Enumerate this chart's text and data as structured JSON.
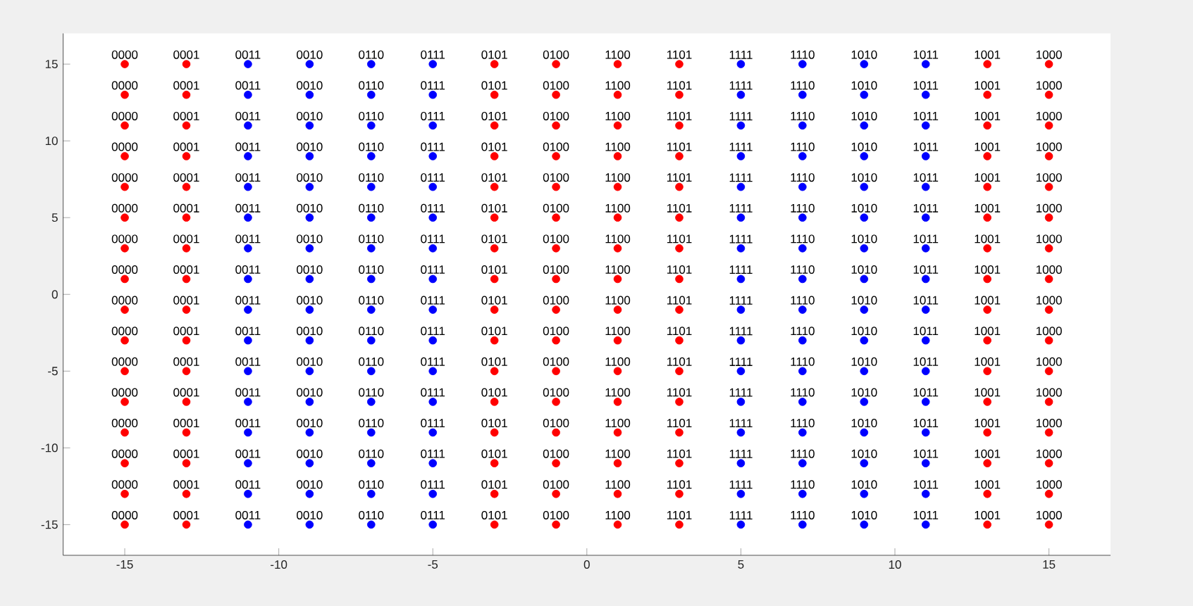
{
  "chart_data": {
    "type": "scatter",
    "marker": "circle",
    "xlim": [
      -17,
      17
    ],
    "ylim": [
      -17,
      17
    ],
    "xticks": [
      -15,
      -10,
      -5,
      0,
      5,
      10,
      15
    ],
    "yticks": [
      -15,
      -10,
      -5,
      0,
      5,
      10,
      15
    ],
    "series": [
      {
        "color": "#ff0000",
        "x": [
          -15,
          -15,
          -15,
          -15,
          -15,
          -15,
          -15,
          -15,
          -15,
          -15,
          -15,
          -15,
          -15,
          -15,
          -15,
          -15,
          -13,
          -13,
          -13,
          -13,
          -13,
          -13,
          -13,
          -13,
          -13,
          -13,
          -13,
          -13,
          -13,
          -13,
          -13,
          -13,
          -3,
          -3,
          -3,
          -3,
          -3,
          -3,
          -3,
          -3,
          -3,
          -3,
          -3,
          -3,
          -3,
          -3,
          -3,
          -3,
          -1,
          -1,
          -1,
          -1,
          -1,
          -1,
          -1,
          -1,
          -1,
          -1,
          -1,
          -1,
          -1,
          -1,
          -1,
          -1,
          1,
          1,
          1,
          1,
          1,
          1,
          1,
          1,
          1,
          1,
          1,
          1,
          1,
          1,
          1,
          1,
          3,
          3,
          3,
          3,
          3,
          3,
          3,
          3,
          3,
          3,
          3,
          3,
          3,
          3,
          3,
          3,
          13,
          13,
          13,
          13,
          13,
          13,
          13,
          13,
          13,
          13,
          13,
          13,
          13,
          13,
          13,
          13,
          15,
          15,
          15,
          15,
          15,
          15,
          15,
          15,
          15,
          15,
          15,
          15,
          15,
          15,
          15,
          15
        ],
        "values": [
          15,
          13,
          11,
          9,
          7,
          5,
          3,
          1,
          -1,
          -3,
          -5,
          -7,
          -9,
          -11,
          -13,
          -15,
          15,
          13,
          11,
          9,
          7,
          5,
          3,
          1,
          -1,
          -3,
          -5,
          -7,
          -9,
          -11,
          -13,
          -15,
          15,
          13,
          11,
          9,
          7,
          5,
          3,
          1,
          -1,
          -3,
          -5,
          -7,
          -9,
          -11,
          -13,
          -15,
          15,
          13,
          11,
          9,
          7,
          5,
          3,
          1,
          -1,
          -3,
          -5,
          -7,
          -9,
          -11,
          -13,
          -15,
          15,
          13,
          11,
          9,
          7,
          5,
          3,
          1,
          -1,
          -3,
          -5,
          -7,
          -9,
          -11,
          -13,
          -15,
          15,
          13,
          11,
          9,
          7,
          5,
          3,
          1,
          -1,
          -3,
          -5,
          -7,
          -9,
          -11,
          -13,
          -15,
          15,
          13,
          11,
          9,
          7,
          5,
          3,
          1,
          -1,
          -3,
          -5,
          -7,
          -9,
          -11,
          -13,
          -15,
          15,
          13,
          11,
          9,
          7,
          5,
          3,
          1,
          -1,
          -3,
          -5,
          -7,
          -9,
          -11,
          -13,
          -15
        ]
      },
      {
        "color": "#0000ff",
        "x": [
          -11,
          -11,
          -11,
          -11,
          -11,
          -11,
          -11,
          -11,
          -11,
          -11,
          -11,
          -11,
          -11,
          -11,
          -11,
          -11,
          -9,
          -9,
          -9,
          -9,
          -9,
          -9,
          -9,
          -9,
          -9,
          -9,
          -9,
          -9,
          -9,
          -9,
          -9,
          -9,
          -7,
          -7,
          -7,
          -7,
          -7,
          -7,
          -7,
          -7,
          -7,
          -7,
          -7,
          -7,
          -7,
          -7,
          -7,
          -7,
          -5,
          -5,
          -5,
          -5,
          -5,
          -5,
          -5,
          -5,
          -5,
          -5,
          -5,
          -5,
          -5,
          -5,
          -5,
          -5,
          5,
          5,
          5,
          5,
          5,
          5,
          5,
          5,
          5,
          5,
          5,
          5,
          5,
          5,
          5,
          5,
          7,
          7,
          7,
          7,
          7,
          7,
          7,
          7,
          7,
          7,
          7,
          7,
          7,
          7,
          7,
          7,
          9,
          9,
          9,
          9,
          9,
          9,
          9,
          9,
          9,
          9,
          9,
          9,
          9,
          9,
          9,
          9,
          11,
          11,
          11,
          11,
          11,
          11,
          11,
          11,
          11,
          11,
          11,
          11,
          11,
          11,
          11,
          11
        ],
        "values": [
          15,
          13,
          11,
          9,
          7,
          5,
          3,
          1,
          -1,
          -3,
          -5,
          -7,
          -9,
          -11,
          -13,
          -15,
          15,
          13,
          11,
          9,
          7,
          5,
          3,
          1,
          -1,
          -3,
          -5,
          -7,
          -9,
          -11,
          -13,
          -15,
          15,
          13,
          11,
          9,
          7,
          5,
          3,
          1,
          -1,
          -3,
          -5,
          -7,
          -9,
          -11,
          -13,
          -15,
          15,
          13,
          11,
          9,
          7,
          5,
          3,
          1,
          -1,
          -3,
          -5,
          -7,
          -9,
          -11,
          -13,
          -15,
          15,
          13,
          11,
          9,
          7,
          5,
          3,
          1,
          -1,
          -3,
          -5,
          -7,
          -9,
          -11,
          -13,
          -15,
          15,
          13,
          11,
          9,
          7,
          5,
          3,
          1,
          -1,
          -3,
          -5,
          -7,
          -9,
          -11,
          -13,
          -15,
          15,
          13,
          11,
          9,
          7,
          5,
          3,
          1,
          -1,
          -3,
          -5,
          -7,
          -9,
          -11,
          -13,
          -15,
          15,
          13,
          11,
          9,
          7,
          5,
          3,
          1,
          -1,
          -3,
          -5,
          -7,
          -9,
          -11,
          -13,
          -15
        ]
      }
    ],
    "annotations": [
      {
        "text": "0000",
        "x": -15,
        "y": 15
      },
      {
        "text": "0001",
        "x": -13,
        "y": 15
      },
      {
        "text": "0011",
        "x": -11,
        "y": 15
      },
      {
        "text": "0010",
        "x": -9,
        "y": 15
      },
      {
        "text": "0110",
        "x": -7,
        "y": 15
      },
      {
        "text": "0111",
        "x": -5,
        "y": 15
      },
      {
        "text": "0101",
        "x": -3,
        "y": 15
      },
      {
        "text": "0100",
        "x": -1,
        "y": 15
      },
      {
        "text": "1100",
        "x": 1,
        "y": 15
      },
      {
        "text": "1101",
        "x": 3,
        "y": 15
      },
      {
        "text": "1111",
        "x": 5,
        "y": 15
      },
      {
        "text": "1110",
        "x": 7,
        "y": 15
      },
      {
        "text": "1010",
        "x": 9,
        "y": 15
      },
      {
        "text": "1011",
        "x": 11,
        "y": 15
      },
      {
        "text": "1001",
        "x": 13,
        "y": 15
      },
      {
        "text": "1000",
        "x": 15,
        "y": 15
      },
      {
        "text": "0000",
        "x": -15,
        "y": 13
      },
      {
        "text": "0001",
        "x": -13,
        "y": 13
      },
      {
        "text": "0011",
        "x": -11,
        "y": 13
      },
      {
        "text": "0010",
        "x": -9,
        "y": 13
      },
      {
        "text": "0110",
        "x": -7,
        "y": 13
      },
      {
        "text": "0111",
        "x": -5,
        "y": 13
      },
      {
        "text": "0101",
        "x": -3,
        "y": 13
      },
      {
        "text": "0100",
        "x": -1,
        "y": 13
      },
      {
        "text": "1100",
        "x": 1,
        "y": 13
      },
      {
        "text": "1101",
        "x": 3,
        "y": 13
      },
      {
        "text": "1111",
        "x": 5,
        "y": 13
      },
      {
        "text": "1110",
        "x": 7,
        "y": 13
      },
      {
        "text": "1010",
        "x": 9,
        "y": 13
      },
      {
        "text": "1011",
        "x": 11,
        "y": 13
      },
      {
        "text": "1001",
        "x": 13,
        "y": 13
      },
      {
        "text": "1000",
        "x": 15,
        "y": 13
      },
      {
        "text": "0000",
        "x": -15,
        "y": 11
      },
      {
        "text": "0001",
        "x": -13,
        "y": 11
      },
      {
        "text": "0011",
        "x": -11,
        "y": 11
      },
      {
        "text": "0010",
        "x": -9,
        "y": 11
      },
      {
        "text": "0110",
        "x": -7,
        "y": 11
      },
      {
        "text": "0111",
        "x": -5,
        "y": 11
      },
      {
        "text": "0101",
        "x": -3,
        "y": 11
      },
      {
        "text": "0100",
        "x": -1,
        "y": 11
      },
      {
        "text": "1100",
        "x": 1,
        "y": 11
      },
      {
        "text": "1101",
        "x": 3,
        "y": 11
      },
      {
        "text": "1111",
        "x": 5,
        "y": 11
      },
      {
        "text": "1110",
        "x": 7,
        "y": 11
      },
      {
        "text": "1010",
        "x": 9,
        "y": 11
      },
      {
        "text": "1011",
        "x": 11,
        "y": 11
      },
      {
        "text": "1001",
        "x": 13,
        "y": 11
      },
      {
        "text": "1000",
        "x": 15,
        "y": 11
      },
      {
        "text": "0000",
        "x": -15,
        "y": 9
      },
      {
        "text": "0001",
        "x": -13,
        "y": 9
      },
      {
        "text": "0011",
        "x": -11,
        "y": 9
      },
      {
        "text": "0010",
        "x": -9,
        "y": 9
      },
      {
        "text": "0110",
        "x": -7,
        "y": 9
      },
      {
        "text": "0111",
        "x": -5,
        "y": 9
      },
      {
        "text": "0101",
        "x": -3,
        "y": 9
      },
      {
        "text": "0100",
        "x": -1,
        "y": 9
      },
      {
        "text": "1100",
        "x": 1,
        "y": 9
      },
      {
        "text": "1101",
        "x": 3,
        "y": 9
      },
      {
        "text": "1111",
        "x": 5,
        "y": 9
      },
      {
        "text": "1110",
        "x": 7,
        "y": 9
      },
      {
        "text": "1010",
        "x": 9,
        "y": 9
      },
      {
        "text": "1011",
        "x": 11,
        "y": 9
      },
      {
        "text": "1001",
        "x": 13,
        "y": 9
      },
      {
        "text": "1000",
        "x": 15,
        "y": 9
      },
      {
        "text": "0000",
        "x": -15,
        "y": 7
      },
      {
        "text": "0001",
        "x": -13,
        "y": 7
      },
      {
        "text": "0011",
        "x": -11,
        "y": 7
      },
      {
        "text": "0010",
        "x": -9,
        "y": 7
      },
      {
        "text": "0110",
        "x": -7,
        "y": 7
      },
      {
        "text": "0111",
        "x": -5,
        "y": 7
      },
      {
        "text": "0101",
        "x": -3,
        "y": 7
      },
      {
        "text": "0100",
        "x": -1,
        "y": 7
      },
      {
        "text": "1100",
        "x": 1,
        "y": 7
      },
      {
        "text": "1101",
        "x": 3,
        "y": 7
      },
      {
        "text": "1111",
        "x": 5,
        "y": 7
      },
      {
        "text": "1110",
        "x": 7,
        "y": 7
      },
      {
        "text": "1010",
        "x": 9,
        "y": 7
      },
      {
        "text": "1011",
        "x": 11,
        "y": 7
      },
      {
        "text": "1001",
        "x": 13,
        "y": 7
      },
      {
        "text": "1000",
        "x": 15,
        "y": 7
      },
      {
        "text": "0000",
        "x": -15,
        "y": 5
      },
      {
        "text": "0001",
        "x": -13,
        "y": 5
      },
      {
        "text": "0011",
        "x": -11,
        "y": 5
      },
      {
        "text": "0010",
        "x": -9,
        "y": 5
      },
      {
        "text": "0110",
        "x": -7,
        "y": 5
      },
      {
        "text": "0111",
        "x": -5,
        "y": 5
      },
      {
        "text": "0101",
        "x": -3,
        "y": 5
      },
      {
        "text": "0100",
        "x": -1,
        "y": 5
      },
      {
        "text": "1100",
        "x": 1,
        "y": 5
      },
      {
        "text": "1101",
        "x": 3,
        "y": 5
      },
      {
        "text": "1111",
        "x": 5,
        "y": 5
      },
      {
        "text": "1110",
        "x": 7,
        "y": 5
      },
      {
        "text": "1010",
        "x": 9,
        "y": 5
      },
      {
        "text": "1011",
        "x": 11,
        "y": 5
      },
      {
        "text": "1001",
        "x": 13,
        "y": 5
      },
      {
        "text": "1000",
        "x": 15,
        "y": 5
      },
      {
        "text": "0000",
        "x": -15,
        "y": 3
      },
      {
        "text": "0001",
        "x": -13,
        "y": 3
      },
      {
        "text": "0011",
        "x": -11,
        "y": 3
      },
      {
        "text": "0010",
        "x": -9,
        "y": 3
      },
      {
        "text": "0110",
        "x": -7,
        "y": 3
      },
      {
        "text": "0111",
        "x": -5,
        "y": 3
      },
      {
        "text": "0101",
        "x": -3,
        "y": 3
      },
      {
        "text": "0100",
        "x": -1,
        "y": 3
      },
      {
        "text": "1100",
        "x": 1,
        "y": 3
      },
      {
        "text": "1101",
        "x": 3,
        "y": 3
      },
      {
        "text": "1111",
        "x": 5,
        "y": 3
      },
      {
        "text": "1110",
        "x": 7,
        "y": 3
      },
      {
        "text": "1010",
        "x": 9,
        "y": 3
      },
      {
        "text": "1011",
        "x": 11,
        "y": 3
      },
      {
        "text": "1001",
        "x": 13,
        "y": 3
      },
      {
        "text": "1000",
        "x": 15,
        "y": 3
      },
      {
        "text": "0000",
        "x": -15,
        "y": 1
      },
      {
        "text": "0001",
        "x": -13,
        "y": 1
      },
      {
        "text": "0011",
        "x": -11,
        "y": 1
      },
      {
        "text": "0010",
        "x": -9,
        "y": 1
      },
      {
        "text": "0110",
        "x": -7,
        "y": 1
      },
      {
        "text": "0111",
        "x": -5,
        "y": 1
      },
      {
        "text": "0101",
        "x": -3,
        "y": 1
      },
      {
        "text": "0100",
        "x": -1,
        "y": 1
      },
      {
        "text": "1100",
        "x": 1,
        "y": 1
      },
      {
        "text": "1101",
        "x": 3,
        "y": 1
      },
      {
        "text": "1111",
        "x": 5,
        "y": 1
      },
      {
        "text": "1110",
        "x": 7,
        "y": 1
      },
      {
        "text": "1010",
        "x": 9,
        "y": 1
      },
      {
        "text": "1011",
        "x": 11,
        "y": 1
      },
      {
        "text": "1001",
        "x": 13,
        "y": 1
      },
      {
        "text": "1000",
        "x": 15,
        "y": 1
      },
      {
        "text": "0000",
        "x": -15,
        "y": -1
      },
      {
        "text": "0001",
        "x": -13,
        "y": -1
      },
      {
        "text": "0011",
        "x": -11,
        "y": -1
      },
      {
        "text": "0010",
        "x": -9,
        "y": -1
      },
      {
        "text": "0110",
        "x": -7,
        "y": -1
      },
      {
        "text": "0111",
        "x": -5,
        "y": -1
      },
      {
        "text": "0101",
        "x": -3,
        "y": -1
      },
      {
        "text": "0100",
        "x": -1,
        "y": -1
      },
      {
        "text": "1100",
        "x": 1,
        "y": -1
      },
      {
        "text": "1101",
        "x": 3,
        "y": -1
      },
      {
        "text": "1111",
        "x": 5,
        "y": -1
      },
      {
        "text": "1110",
        "x": 7,
        "y": -1
      },
      {
        "text": "1010",
        "x": 9,
        "y": -1
      },
      {
        "text": "1011",
        "x": 11,
        "y": -1
      },
      {
        "text": "1001",
        "x": 13,
        "y": -1
      },
      {
        "text": "1000",
        "x": 15,
        "y": -1
      },
      {
        "text": "0000",
        "x": -15,
        "y": -3
      },
      {
        "text": "0001",
        "x": -13,
        "y": -3
      },
      {
        "text": "0011",
        "x": -11,
        "y": -3
      },
      {
        "text": "0010",
        "x": -9,
        "y": -3
      },
      {
        "text": "0110",
        "x": -7,
        "y": -3
      },
      {
        "text": "0111",
        "x": -5,
        "y": -3
      },
      {
        "text": "0101",
        "x": -3,
        "y": -3
      },
      {
        "text": "0100",
        "x": -1,
        "y": -3
      },
      {
        "text": "1100",
        "x": 1,
        "y": -3
      },
      {
        "text": "1101",
        "x": 3,
        "y": -3
      },
      {
        "text": "1111",
        "x": 5,
        "y": -3
      },
      {
        "text": "1110",
        "x": 7,
        "y": -3
      },
      {
        "text": "1010",
        "x": 9,
        "y": -3
      },
      {
        "text": "1011",
        "x": 11,
        "y": -3
      },
      {
        "text": "1001",
        "x": 13,
        "y": -3
      },
      {
        "text": "1000",
        "x": 15,
        "y": -3
      },
      {
        "text": "0000",
        "x": -15,
        "y": -5
      },
      {
        "text": "0001",
        "x": -13,
        "y": -5
      },
      {
        "text": "0011",
        "x": -11,
        "y": -5
      },
      {
        "text": "0010",
        "x": -9,
        "y": -5
      },
      {
        "text": "0110",
        "x": -7,
        "y": -5
      },
      {
        "text": "0111",
        "x": -5,
        "y": -5
      },
      {
        "text": "0101",
        "x": -3,
        "y": -5
      },
      {
        "text": "0100",
        "x": -1,
        "y": -5
      },
      {
        "text": "1100",
        "x": 1,
        "y": -5
      },
      {
        "text": "1101",
        "x": 3,
        "y": -5
      },
      {
        "text": "1111",
        "x": 5,
        "y": -5
      },
      {
        "text": "1110",
        "x": 7,
        "y": -5
      },
      {
        "text": "1010",
        "x": 9,
        "y": -5
      },
      {
        "text": "1011",
        "x": 11,
        "y": -5
      },
      {
        "text": "1001",
        "x": 13,
        "y": -5
      },
      {
        "text": "1000",
        "x": 15,
        "y": -5
      },
      {
        "text": "0000",
        "x": -15,
        "y": -7
      },
      {
        "text": "0001",
        "x": -13,
        "y": -7
      },
      {
        "text": "0011",
        "x": -11,
        "y": -7
      },
      {
        "text": "0010",
        "x": -9,
        "y": -7
      },
      {
        "text": "0110",
        "x": -7,
        "y": -7
      },
      {
        "text": "0111",
        "x": -5,
        "y": -7
      },
      {
        "text": "0101",
        "x": -3,
        "y": -7
      },
      {
        "text": "0100",
        "x": -1,
        "y": -7
      },
      {
        "text": "1100",
        "x": 1,
        "y": -7
      },
      {
        "text": "1101",
        "x": 3,
        "y": -7
      },
      {
        "text": "1111",
        "x": 5,
        "y": -7
      },
      {
        "text": "1110",
        "x": 7,
        "y": -7
      },
      {
        "text": "1010",
        "x": 9,
        "y": -7
      },
      {
        "text": "1011",
        "x": 11,
        "y": -7
      },
      {
        "text": "1001",
        "x": 13,
        "y": -7
      },
      {
        "text": "1000",
        "x": 15,
        "y": -7
      },
      {
        "text": "0000",
        "x": -15,
        "y": -9
      },
      {
        "text": "0001",
        "x": -13,
        "y": -9
      },
      {
        "text": "0011",
        "x": -11,
        "y": -9
      },
      {
        "text": "0010",
        "x": -9,
        "y": -9
      },
      {
        "text": "0110",
        "x": -7,
        "y": -9
      },
      {
        "text": "0111",
        "x": -5,
        "y": -9
      },
      {
        "text": "0101",
        "x": -3,
        "y": -9
      },
      {
        "text": "0100",
        "x": -1,
        "y": -9
      },
      {
        "text": "1100",
        "x": 1,
        "y": -9
      },
      {
        "text": "1101",
        "x": 3,
        "y": -9
      },
      {
        "text": "1111",
        "x": 5,
        "y": -9
      },
      {
        "text": "1110",
        "x": 7,
        "y": -9
      },
      {
        "text": "1010",
        "x": 9,
        "y": -9
      },
      {
        "text": "1011",
        "x": 11,
        "y": -9
      },
      {
        "text": "1001",
        "x": 13,
        "y": -9
      },
      {
        "text": "1000",
        "x": 15,
        "y": -9
      },
      {
        "text": "0000",
        "x": -15,
        "y": -11
      },
      {
        "text": "0001",
        "x": -13,
        "y": -11
      },
      {
        "text": "0011",
        "x": -11,
        "y": -11
      },
      {
        "text": "0010",
        "x": -9,
        "y": -11
      },
      {
        "text": "0110",
        "x": -7,
        "y": -11
      },
      {
        "text": "0111",
        "x": -5,
        "y": -11
      },
      {
        "text": "0101",
        "x": -3,
        "y": -11
      },
      {
        "text": "0100",
        "x": -1,
        "y": -11
      },
      {
        "text": "1100",
        "x": 1,
        "y": -11
      },
      {
        "text": "1101",
        "x": 3,
        "y": -11
      },
      {
        "text": "1111",
        "x": 5,
        "y": -11
      },
      {
        "text": "1110",
        "x": 7,
        "y": -11
      },
      {
        "text": "1010",
        "x": 9,
        "y": -11
      },
      {
        "text": "1011",
        "x": 11,
        "y": -11
      },
      {
        "text": "1001",
        "x": 13,
        "y": -11
      },
      {
        "text": "1000",
        "x": 15,
        "y": -11
      },
      {
        "text": "0000",
        "x": -15,
        "y": -13
      },
      {
        "text": "0001",
        "x": -13,
        "y": -13
      },
      {
        "text": "0011",
        "x": -11,
        "y": -13
      },
      {
        "text": "0010",
        "x": -9,
        "y": -13
      },
      {
        "text": "0110",
        "x": -7,
        "y": -13
      },
      {
        "text": "0111",
        "x": -5,
        "y": -13
      },
      {
        "text": "0101",
        "x": -3,
        "y": -13
      },
      {
        "text": "0100",
        "x": -1,
        "y": -13
      },
      {
        "text": "1100",
        "x": 1,
        "y": -13
      },
      {
        "text": "1101",
        "x": 3,
        "y": -13
      },
      {
        "text": "1111",
        "x": 5,
        "y": -13
      },
      {
        "text": "1110",
        "x": 7,
        "y": -13
      },
      {
        "text": "1010",
        "x": 9,
        "y": -13
      },
      {
        "text": "1011",
        "x": 11,
        "y": -13
      },
      {
        "text": "1001",
        "x": 13,
        "y": -13
      },
      {
        "text": "1000",
        "x": 15,
        "y": -13
      },
      {
        "text": "0000",
        "x": -15,
        "y": -15
      },
      {
        "text": "0001",
        "x": -13,
        "y": -15
      },
      {
        "text": "0011",
        "x": -11,
        "y": -15
      },
      {
        "text": "0010",
        "x": -9,
        "y": -15
      },
      {
        "text": "0110",
        "x": -7,
        "y": -15
      },
      {
        "text": "0111",
        "x": -5,
        "y": -15
      },
      {
        "text": "0101",
        "x": -3,
        "y": -15
      },
      {
        "text": "0100",
        "x": -1,
        "y": -15
      },
      {
        "text": "1100",
        "x": 1,
        "y": -15
      },
      {
        "text": "1101",
        "x": 3,
        "y": -15
      },
      {
        "text": "1111",
        "x": 5,
        "y": -15
      },
      {
        "text": "1110",
        "x": 7,
        "y": -15
      },
      {
        "text": "1010",
        "x": 9,
        "y": -15
      },
      {
        "text": "1011",
        "x": 11,
        "y": -15
      },
      {
        "text": "1001",
        "x": 13,
        "y": -15
      },
      {
        "text": "1000",
        "x": 15,
        "y": -15
      }
    ]
  }
}
